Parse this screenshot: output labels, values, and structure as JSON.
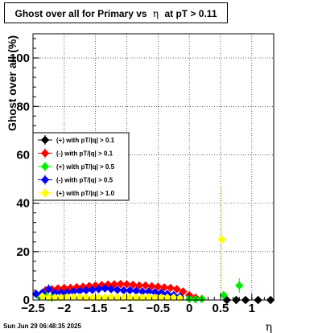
{
  "header": {
    "title_prefix": "Ghost over all for Primary vs",
    "title_symbol": "η",
    "title_suffix": "at pT > 0.11"
  },
  "footer": {
    "timestamp": "Sun Jun 29 06:48:35 2025"
  },
  "chart_data": {
    "type": "scatter",
    "title": "Ghost over all for Primary vs η at pT > 0.11",
    "xlabel": "η",
    "ylabel": "Ghost over all (%)",
    "xlim": [
      -2.5,
      1.35
    ],
    "ylim": [
      0,
      110
    ],
    "x_ticks": [
      -2.5,
      -2,
      -1.5,
      -1,
      -0.5,
      0,
      0.5,
      1
    ],
    "x_tick_labels": [
      "−2.5",
      "−2",
      "−1.5",
      "−1",
      "−0.5",
      "0",
      "0.5",
      "1"
    ],
    "y_ticks": [
      0,
      20,
      40,
      60,
      80,
      100
    ],
    "y_tick_labels": [
      "0",
      "20",
      "40",
      "60",
      "80",
      "100"
    ],
    "grid": true,
    "legend_position": "middle-left",
    "series": [
      {
        "name": "(+) with pT/|q| > 0.1",
        "color": "#000000",
        "marker": "diamond",
        "x": [
          0.6,
          0.75,
          0.9,
          1.1,
          1.3
        ],
        "y": [
          0.0,
          0.0,
          0.0,
          0.0,
          0.0
        ],
        "err": [
          0.5,
          0.5,
          0.5,
          0.8,
          0.5
        ]
      },
      {
        "name": "(-) with pT/|q| > 0.1",
        "color": "#ff0000",
        "marker": "diamond",
        "x": [
          -2.3,
          -2.2,
          -2.1,
          -2.0,
          -1.9,
          -1.8,
          -1.7,
          -1.6,
          -1.5,
          -1.4,
          -1.3,
          -1.2,
          -1.1,
          -1.0,
          -0.9,
          -0.8,
          -0.7,
          -0.6,
          -0.5,
          -0.4,
          -0.3,
          -0.2,
          -0.1,
          0.0,
          0.1,
          0.2
        ],
        "y": [
          4.0,
          4.5,
          4.8,
          5.0,
          5.0,
          5.3,
          5.5,
          5.8,
          6.0,
          6.2,
          6.4,
          6.5,
          6.6,
          6.5,
          6.3,
          6.0,
          6.0,
          5.7,
          5.5,
          5.2,
          5.0,
          4.5,
          3.5,
          2.0,
          1.0,
          0.5
        ],
        "err": [
          1.0,
          1.0,
          0.9,
          0.9,
          0.8,
          0.8,
          0.8,
          0.8,
          0.8,
          0.8,
          0.8,
          0.8,
          0.8,
          0.8,
          0.8,
          0.8,
          0.8,
          0.8,
          0.8,
          0.8,
          0.8,
          0.9,
          1.0,
          1.0,
          1.0,
          1.0
        ]
      },
      {
        "name": "(+) with pT/|q| > 0.5",
        "color": "#00ee00",
        "marker": "diamond",
        "x": [
          -2.4,
          -2.3,
          -2.2,
          0.0,
          0.1,
          0.2,
          0.55,
          0.8
        ],
        "y": [
          1.5,
          2.0,
          1.0,
          0.5,
          0.3,
          0.5,
          2.0,
          6.0
        ],
        "err": [
          1.0,
          1.0,
          1.0,
          1.0,
          1.0,
          1.0,
          1.5,
          3.0
        ]
      },
      {
        "name": "(-) with pT/|q| > 0.5",
        "color": "#0000ff",
        "marker": "diamond",
        "x": [
          -2.45,
          -2.35,
          -2.25,
          -2.15,
          -2.05,
          -1.95,
          -1.85,
          -1.75,
          -1.65,
          -1.55,
          -1.45,
          -1.35,
          -1.25,
          -1.15,
          -1.05,
          -0.95,
          -0.85,
          -0.75,
          -0.65,
          -0.55,
          -0.45,
          -0.35,
          -0.25,
          -0.15
        ],
        "y": [
          2.5,
          3.0,
          4.5,
          3.0,
          3.0,
          3.2,
          3.5,
          3.8,
          4.0,
          4.2,
          4.5,
          4.8,
          4.5,
          4.2,
          4.0,
          4.0,
          3.8,
          3.5,
          3.5,
          3.2,
          3.0,
          2.5,
          2.0,
          1.5
        ],
        "err": [
          1.5,
          1.5,
          2.0,
          1.0,
          0.8,
          0.8,
          0.8,
          0.8,
          0.8,
          0.8,
          0.8,
          0.8,
          0.8,
          0.8,
          0.8,
          0.8,
          0.8,
          0.8,
          0.8,
          0.8,
          0.8,
          0.8,
          0.8,
          1.0
        ]
      },
      {
        "name": "(+) with pT/|q| > 1.0",
        "color": "#ffff00",
        "marker": "diamond",
        "x": [
          -2.35,
          -2.25,
          -2.15,
          -2.05,
          -1.95,
          -1.85,
          -1.75,
          -1.65,
          -1.55,
          -1.45,
          -1.35,
          -1.25,
          -1.15,
          -1.05,
          -0.95,
          -0.85,
          -0.75,
          -0.65,
          -0.55,
          -0.45,
          -0.35,
          -0.25,
          -0.15,
          0.52
        ],
        "y": [
          1.5,
          1.0,
          1.0,
          1.0,
          1.2,
          1.2,
          1.2,
          1.0,
          1.0,
          1.0,
          1.0,
          1.2,
          1.0,
          1.0,
          1.0,
          1.0,
          1.0,
          1.2,
          1.0,
          1.0,
          1.0,
          1.0,
          0.8,
          25.0
        ],
        "err": [
          1.0,
          0.8,
          0.8,
          0.8,
          0.8,
          0.8,
          0.8,
          0.8,
          0.8,
          0.8,
          0.8,
          0.8,
          0.8,
          0.8,
          0.8,
          0.8,
          0.8,
          0.8,
          0.8,
          0.8,
          0.8,
          0.8,
          0.8,
          22.0
        ]
      }
    ]
  }
}
